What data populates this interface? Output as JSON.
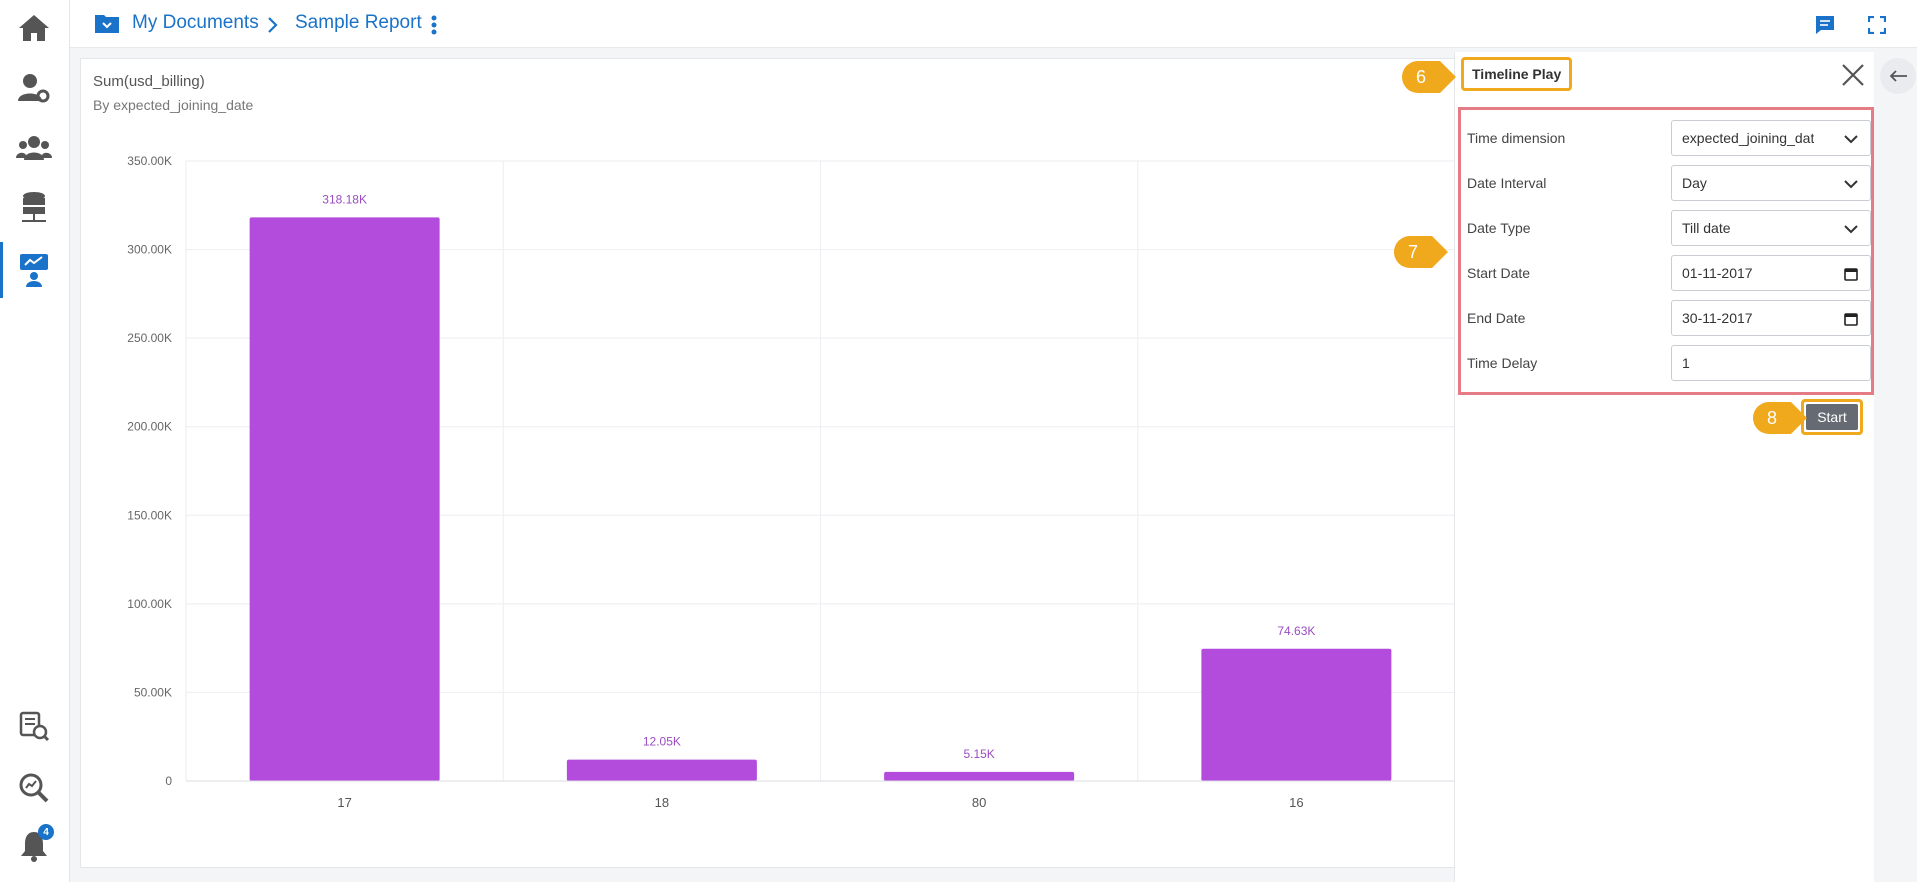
{
  "breadcrumb": {
    "folder": "My Documents",
    "report": "Sample Report"
  },
  "notifications": {
    "count": "4"
  },
  "panel": {
    "title": "Timeline Play",
    "fields": [
      {
        "label": "Time dimension",
        "value": "expected_joining_dat",
        "kind": "select"
      },
      {
        "label": "Date Interval",
        "value": "Day",
        "kind": "select"
      },
      {
        "label": "Date Type",
        "value": "Till date",
        "kind": "select"
      },
      {
        "label": "Start Date",
        "value": "01-11-2017",
        "kind": "date"
      },
      {
        "label": "End Date",
        "value": "30-11-2017",
        "kind": "date"
      },
      {
        "label": "Time Delay",
        "value": "1",
        "kind": "input"
      }
    ],
    "start_label": "Start"
  },
  "callouts": {
    "c6": "6",
    "c7": "7",
    "c8": "8"
  },
  "colors": {
    "accent": "#1a73c8",
    "bar": "#b34cdc",
    "highlight": "#f0a81c",
    "form_border": "#e57b85"
  },
  "chart_data": {
    "type": "bar",
    "title": "Sum(usd_billing)",
    "subtitle": "By expected_joining_date",
    "categories": [
      "17",
      "18",
      "80",
      "16"
    ],
    "values": [
      318180,
      12050,
      5150,
      74630
    ],
    "data_labels": [
      "318.18K",
      "12.05K",
      "5.15K",
      "74.63K"
    ],
    "ylim": [
      0,
      350000
    ],
    "yticks": [
      0,
      50000,
      100000,
      150000,
      200000,
      250000,
      300000,
      350000
    ],
    "ytick_labels": [
      "0",
      "50.00K",
      "100.00K",
      "150.00K",
      "200.00K",
      "250.00K",
      "300.00K",
      "350.00K"
    ],
    "grid": true
  }
}
